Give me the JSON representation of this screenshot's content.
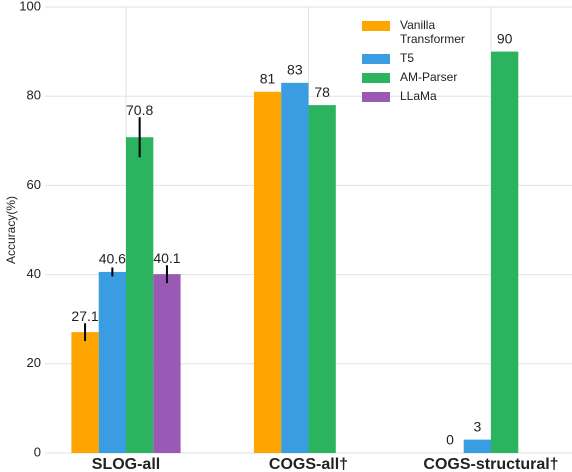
{
  "chart_data": {
    "type": "bar",
    "y_label": "Accuracy(%)",
    "categories": [
      "SLOG-all",
      "COGS-all†",
      "COGS-structural†"
    ],
    "series": [
      {
        "name": "Vanilla Transformer",
        "color": "#ffa500",
        "values": [
          27.1,
          81,
          0
        ],
        "errors": [
          2,
          null,
          null
        ]
      },
      {
        "name": "T5",
        "color": "#3b9de1",
        "values": [
          40.6,
          83,
          3
        ],
        "errors": [
          1,
          null,
          null
        ]
      },
      {
        "name": "AM-Parser",
        "color": "#2bb35f",
        "values": [
          70.8,
          78,
          90
        ],
        "errors": [
          4.5,
          null,
          null
        ]
      },
      {
        "name": "LLaMa",
        "color": "#9b59b6",
        "values": [
          40.1,
          null,
          null
        ],
        "errors": [
          2,
          null,
          null
        ]
      }
    ],
    "ylim": [
      0,
      100
    ],
    "yticks": [
      0,
      20,
      40,
      60,
      80,
      100
    ],
    "grid": true,
    "legend": "upper right"
  }
}
